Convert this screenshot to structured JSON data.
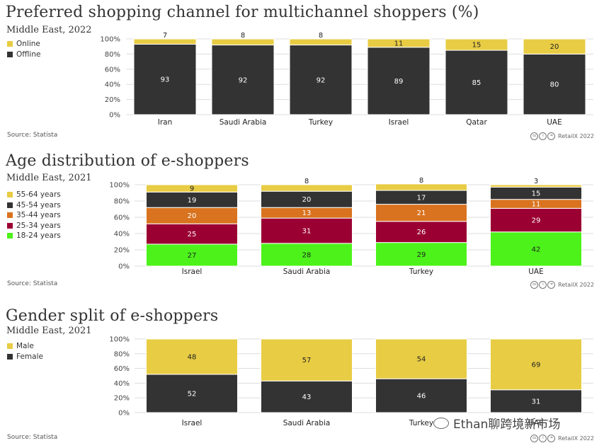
{
  "watermark": {
    "text": "Ethan聊跨境新市场"
  },
  "chart_data": [
    {
      "type": "bar",
      "stacked": true,
      "title": "Preferred shopping channel for multichannel shoppers (%)",
      "subtitle": "Middle East, 2022",
      "source": "Source: Statista",
      "credit": "RetailX 2022",
      "categories": [
        "Iran",
        "Saudi Arabia",
        "Turkey",
        "Israel",
        "Qatar",
        "UAE"
      ],
      "series": [
        {
          "name": "Offline",
          "color": "#333333",
          "values": [
            93,
            92,
            92,
            89,
            85,
            80
          ]
        },
        {
          "name": "Online",
          "color": "#e8cc44",
          "values": [
            7,
            8,
            8,
            11,
            15,
            20
          ]
        }
      ],
      "legend": [
        "Online",
        "Offline"
      ],
      "ylim": [
        0,
        100
      ],
      "yticks": [
        "0%",
        "20%",
        "40%",
        "60%",
        "80%",
        "100%"
      ],
      "xlabel": "",
      "ylabel": ""
    },
    {
      "type": "bar",
      "stacked": true,
      "title": "Age distribution of e-shoppers",
      "subtitle": "Middle East, 2021",
      "source": "Source: Statista",
      "credit": "RetailX 2022",
      "categories": [
        "Israel",
        "Saudi Arabia",
        "Turkey",
        "UAE"
      ],
      "series": [
        {
          "name": "18-24 years",
          "color": "#4cf21a",
          "values": [
            27,
            28,
            29,
            42
          ]
        },
        {
          "name": "25-34 years",
          "color": "#9b0033",
          "values": [
            25,
            31,
            26,
            29
          ]
        },
        {
          "name": "35-44 years",
          "color": "#d9731f",
          "values": [
            20,
            13,
            21,
            11
          ]
        },
        {
          "name": "45-54 years",
          "color": "#333333",
          "values": [
            19,
            20,
            17,
            15
          ]
        },
        {
          "name": "55-64 years",
          "color": "#e8cc44",
          "values": [
            9,
            8,
            8,
            3
          ]
        }
      ],
      "legend": [
        "55-64 years",
        "45-54 years",
        "35-44 years",
        "25-34 years",
        "18-24 years"
      ],
      "ylim": [
        0,
        100
      ],
      "yticks": [
        "0%",
        "20%",
        "40%",
        "60%",
        "80%",
        "100%"
      ],
      "xlabel": "",
      "ylabel": ""
    },
    {
      "type": "bar",
      "stacked": true,
      "title": "Gender split of e-shoppers",
      "subtitle": "Middle East, 2021",
      "source": "Source: Statista",
      "credit": "RetailX 2022",
      "categories": [
        "Israel",
        "Saudi Arabia",
        "Turkey",
        "UAE"
      ],
      "series": [
        {
          "name": "Female",
          "color": "#333333",
          "values": [
            52,
            43,
            46,
            31
          ]
        },
        {
          "name": "Male",
          "color": "#e8cc44",
          "values": [
            48,
            57,
            54,
            69
          ]
        }
      ],
      "legend": [
        "Male",
        "Female"
      ],
      "ylim": [
        0,
        100
      ],
      "yticks": [
        "0%",
        "20%",
        "40%",
        "60%",
        "80%",
        "100%"
      ],
      "xlabel": "",
      "ylabel": ""
    }
  ]
}
